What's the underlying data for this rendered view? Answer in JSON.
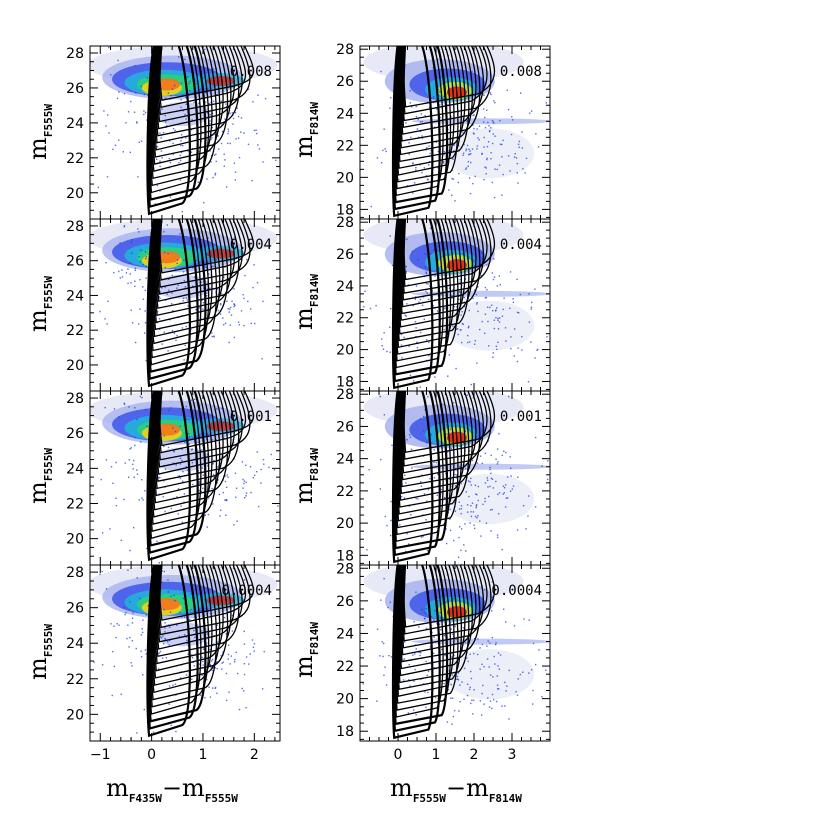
{
  "figure_labels": {
    "ylabel_left": {
      "main": "m",
      "sub": "F555W"
    },
    "ylabel_right": {
      "main": "m",
      "sub": "F814W"
    },
    "xlabel_left": {
      "m1": "m",
      "s1": "F435W",
      "dash": "−",
      "m2": "m",
      "s2": "F555W"
    },
    "xlabel_right": {
      "m1": "m",
      "s1": "F555W",
      "dash": "−",
      "m2": "m",
      "s2": "F814W"
    }
  },
  "colors": {
    "background": "#ffffff",
    "axes": "#000000",
    "isochrone": "#000000",
    "density_scale": [
      "#e4e7f5",
      "#a7b3ef",
      "#3c55ea",
      "#1a3ee0",
      "#1fb6d8",
      "#2fd36e",
      "#c9e534",
      "#f4d01c",
      "#f3731d",
      "#e41e12"
    ]
  },
  "chart_data": [
    {
      "type": "scatter",
      "panel": "left-1",
      "metallicity_label": "0.008",
      "xlim": [
        -1.2,
        2.5
      ],
      "ylim": [
        28.4,
        18.5
      ],
      "xticks": [
        -1,
        0,
        1,
        2
      ],
      "yticks": [
        20,
        22,
        24,
        26,
        28
      ],
      "show_xticklabels": false,
      "xlabel": "",
      "ylabel": "m_F555W",
      "grid": false
    },
    {
      "type": "scatter",
      "panel": "right-1",
      "metallicity_label": "0.008",
      "xlim": [
        -1.0,
        4.0
      ],
      "ylim": [
        28.2,
        17.4
      ],
      "xticks": [
        0,
        1,
        2,
        3
      ],
      "yticks": [
        18,
        20,
        22,
        24,
        26,
        28
      ],
      "show_xticklabels": false,
      "xlabel": "",
      "ylabel": "m_F814W",
      "grid": false
    },
    {
      "type": "scatter",
      "panel": "left-2",
      "metallicity_label": "0.004",
      "xlim": [
        -1.2,
        2.5
      ],
      "ylim": [
        28.4,
        18.5
      ],
      "xticks": [
        -1,
        0,
        1,
        2
      ],
      "yticks": [
        20,
        22,
        24,
        26,
        28
      ],
      "show_xticklabels": false,
      "xlabel": "",
      "ylabel": "m_F555W",
      "grid": false
    },
    {
      "type": "scatter",
      "panel": "right-2",
      "metallicity_label": "0.004",
      "xlim": [
        -1.0,
        4.0
      ],
      "ylim": [
        28.2,
        17.4
      ],
      "xticks": [
        0,
        1,
        2,
        3
      ],
      "yticks": [
        18,
        20,
        22,
        24,
        26,
        28
      ],
      "show_xticklabels": false,
      "xlabel": "",
      "ylabel": "m_F814W",
      "grid": false
    },
    {
      "type": "scatter",
      "panel": "left-3",
      "metallicity_label": "0.001",
      "xlim": [
        -1.2,
        2.5
      ],
      "ylim": [
        28.4,
        18.5
      ],
      "xticks": [
        -1,
        0,
        1,
        2
      ],
      "yticks": [
        20,
        22,
        24,
        26,
        28
      ],
      "show_xticklabels": false,
      "xlabel": "",
      "ylabel": "m_F555W",
      "grid": false
    },
    {
      "type": "scatter",
      "panel": "right-3",
      "metallicity_label": "0.001",
      "xlim": [
        -1.0,
        4.0
      ],
      "ylim": [
        28.2,
        17.4
      ],
      "xticks": [
        0,
        1,
        2,
        3
      ],
      "yticks": [
        18,
        20,
        22,
        24,
        26,
        28
      ],
      "show_xticklabels": false,
      "xlabel": "",
      "ylabel": "m_F814W",
      "grid": false
    },
    {
      "type": "scatter",
      "panel": "left-4",
      "metallicity_label": "0.0004",
      "xlim": [
        -1.2,
        2.5
      ],
      "ylim": [
        28.4,
        18.5
      ],
      "xticks": [
        -1,
        0,
        1,
        2
      ],
      "xticklabels": [
        "−1",
        "0",
        "1",
        "2"
      ],
      "yticks": [
        20,
        22,
        24,
        26,
        28
      ],
      "show_xticklabels": true,
      "xlabel": "m_F435W − m_F555W",
      "ylabel": "m_F555W",
      "grid": false
    },
    {
      "type": "scatter",
      "panel": "right-4",
      "metallicity_label": "0.0004",
      "xlim": [
        -1.0,
        4.0
      ],
      "ylim": [
        28.2,
        17.4
      ],
      "xticks": [
        0,
        1,
        2,
        3
      ],
      "xticklabels": [
        "0",
        "1",
        "2",
        "3"
      ],
      "yticks": [
        18,
        20,
        22,
        24,
        26,
        28
      ],
      "show_xticklabels": true,
      "xlabel": "m_F555W − m_F814W",
      "ylabel": "m_F814W",
      "grid": false
    }
  ]
}
